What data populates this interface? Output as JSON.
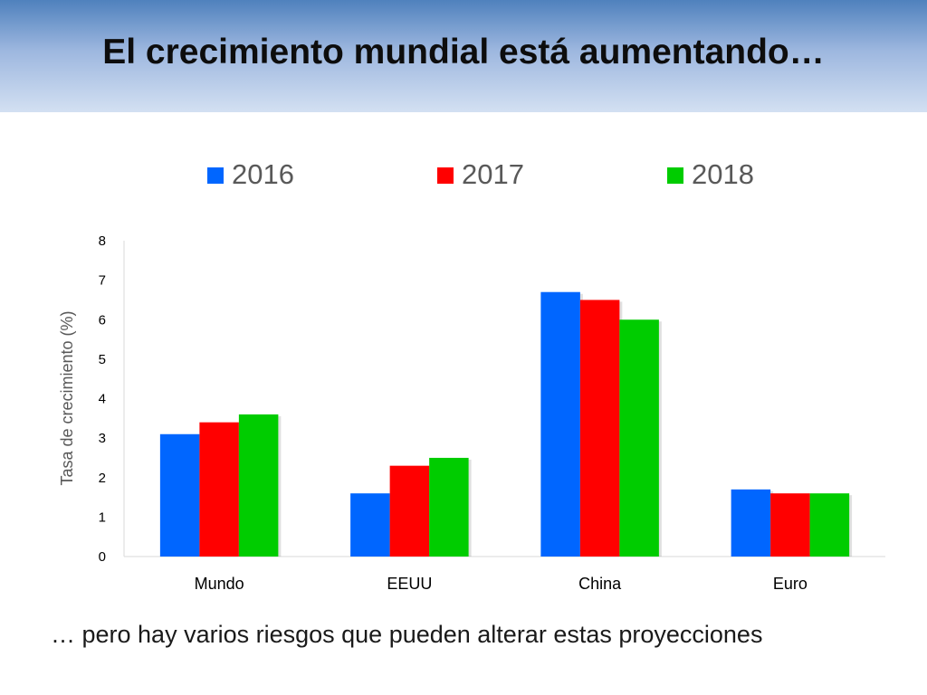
{
  "slide": {
    "title": "El crecimiento mundial está aumentando…",
    "footer": "… pero hay varios riesgos que pueden alterar estas proyecciones"
  },
  "colors": {
    "header_gradient_top": "#4f81bd",
    "header_gradient_bottom": "#d3e0f2",
    "series_2016": "#0066ff",
    "series_2017": "#ff0000",
    "series_2018": "#00cc00",
    "axis_text": "#595959"
  },
  "chart_data": {
    "type": "bar",
    "title": "",
    "xlabel": "",
    "ylabel": "Tasa de crecimiento (%)",
    "categories": [
      "Mundo",
      "EEUU",
      "China",
      "Euro"
    ],
    "series": [
      {
        "name": "2016",
        "values": [
          3.1,
          1.6,
          6.7,
          1.7
        ],
        "color": "#0066ff"
      },
      {
        "name": "2017",
        "values": [
          3.4,
          2.3,
          6.5,
          1.6
        ],
        "color": "#ff0000"
      },
      {
        "name": "2018",
        "values": [
          3.6,
          2.5,
          6.0,
          1.6
        ],
        "color": "#00cc00"
      }
    ],
    "ylim": [
      0,
      8
    ],
    "yticks": [
      "0",
      "1",
      "2",
      "3",
      "4",
      "5",
      "6",
      "7",
      "8"
    ],
    "grid": false,
    "legend_position": "top"
  }
}
